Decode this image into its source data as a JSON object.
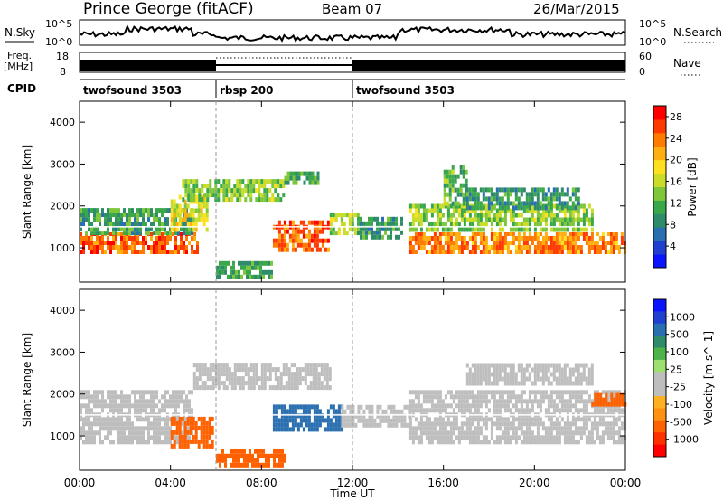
{
  "header": {
    "station": "Prince George (fitACF)",
    "beam": "Beam 07",
    "date": "26/Mar/2015"
  },
  "top_panels": {
    "nsky_label": "N.Sky",
    "nsky_ticks": [
      "10^5",
      "10^0"
    ],
    "nsearch_label": "N.Search",
    "nsearch_ticks": [
      "10^5",
      "10^0"
    ],
    "freq_label_line1": "Freq.",
    "freq_label_line2": "[MHz]",
    "freq_ticks": [
      "18",
      "8"
    ],
    "nave_label": "Nave",
    "nave_ticks": [
      "60",
      "0"
    ],
    "cpid_label": "CPID",
    "cpid_segments": [
      {
        "label": "twofsound 3503",
        "start_hour": 0,
        "end_hour": 6
      },
      {
        "label": "rbsp 200",
        "start_hour": 6,
        "end_hour": 12
      },
      {
        "label": "twofsound 3503",
        "start_hour": 12,
        "end_hour": 24
      }
    ]
  },
  "x_axis": {
    "label": "Time UT",
    "ticks": [
      "00:00",
      "04:00",
      "08:00",
      "12:00",
      "16:00",
      "20:00",
      "00:00"
    ]
  },
  "chart_data": [
    {
      "type": "heatmap",
      "title": "",
      "ylabel": "Slant Range [km]",
      "xlabel": "Time UT",
      "xlim": [
        0,
        24
      ],
      "ylim": [
        180,
        4500
      ],
      "y_ticks": [
        1000,
        2000,
        3000,
        4000
      ],
      "colorbar": {
        "label": "Power [dB]",
        "range": [
          0,
          30
        ],
        "ticks": [
          "4",
          "8",
          "12",
          "16",
          "20",
          "24",
          "28"
        ],
        "colors": [
          "#0a14ff",
          "#1e3fd0",
          "#2a6fb0",
          "#2e8c6a",
          "#3aa84a",
          "#7ec63a",
          "#c8dc28",
          "#ffe020",
          "#ffb010",
          "#ff7a00",
          "#ff3a00",
          "#ff0000"
        ]
      },
      "regions": [
        {
          "hour_start": 0.0,
          "hour_end": 5.2,
          "range_low": 850,
          "range_high": 1300,
          "value": 26
        },
        {
          "hour_start": 0.0,
          "hour_end": 5.0,
          "range_low": 1300,
          "range_high": 1850,
          "value": 10
        },
        {
          "hour_start": 4.0,
          "hour_end": 5.6,
          "range_low": 1400,
          "range_high": 2200,
          "value": 18
        },
        {
          "hour_start": 4.5,
          "hour_end": 9.0,
          "range_low": 2100,
          "range_high": 2600,
          "value": 14
        },
        {
          "hour_start": 9.0,
          "hour_end": 10.5,
          "range_low": 2500,
          "range_high": 2800,
          "value": 11
        },
        {
          "hour_start": 8.5,
          "hour_end": 11.0,
          "range_low": 900,
          "range_high": 1600,
          "value": 26
        },
        {
          "hour_start": 11.0,
          "hour_end": 12.2,
          "range_low": 1300,
          "range_high": 1800,
          "value": 15
        },
        {
          "hour_start": 12.2,
          "hour_end": 14.2,
          "range_low": 1200,
          "range_high": 1700,
          "value": 9
        },
        {
          "hour_start": 14.5,
          "hour_end": 24.0,
          "range_low": 850,
          "range_high": 1300,
          "value": 24
        },
        {
          "hour_start": 14.5,
          "hour_end": 22.5,
          "range_low": 1400,
          "range_high": 2000,
          "value": 14
        },
        {
          "hour_start": 16.0,
          "hour_end": 17.0,
          "range_low": 2000,
          "range_high": 2900,
          "value": 12
        },
        {
          "hour_start": 17.0,
          "hour_end": 22.0,
          "range_low": 1900,
          "range_high": 2400,
          "value": 9
        },
        {
          "hour_start": 6.0,
          "hour_end": 8.5,
          "range_low": 250,
          "range_high": 600,
          "value": 11
        }
      ]
    },
    {
      "type": "heatmap",
      "title": "",
      "ylabel": "Slant Range [km]",
      "xlabel": "Time UT",
      "xlim": [
        0,
        24
      ],
      "ylim": [
        180,
        4500
      ],
      "y_ticks": [
        1000,
        2000,
        3000,
        4000
      ],
      "colorbar": {
        "label": "Velocity [m s^-1]",
        "ticks": [
          "1000",
          "500",
          "100",
          "25",
          "-25",
          "-100",
          "-500",
          "-1000"
        ],
        "colors": [
          "#0a14ff",
          "#2040d0",
          "#2a6fb0",
          "#2e8c6a",
          "#4db24a",
          "#9de070",
          "#bebebe",
          "#bebebe",
          "#ffb020",
          "#ff9010",
          "#ff6000",
          "#ff3000",
          "#ff0000"
        ]
      },
      "regions": [
        {
          "hour_start": 0.0,
          "hour_end": 5.0,
          "range_low": 800,
          "range_high": 2000,
          "value": "ground"
        },
        {
          "hour_start": 4.0,
          "hour_end": 5.8,
          "range_low": 700,
          "range_high": 1400,
          "value": -300
        },
        {
          "hour_start": 5.0,
          "hour_end": 11.0,
          "range_low": 2100,
          "range_high": 2700,
          "value": "ground"
        },
        {
          "hour_start": 8.5,
          "hour_end": 11.5,
          "range_low": 1100,
          "range_high": 1700,
          "value": 250
        },
        {
          "hour_start": 11.5,
          "hour_end": 14.5,
          "range_low": 1200,
          "range_high": 1700,
          "value": "ground"
        },
        {
          "hour_start": 14.5,
          "hour_end": 24.0,
          "range_low": 800,
          "range_high": 2000,
          "value": "ground"
        },
        {
          "hour_start": 17.0,
          "hour_end": 22.5,
          "range_low": 2200,
          "range_high": 2700,
          "value": "ground"
        },
        {
          "hour_start": 22.5,
          "hour_end": 24.0,
          "range_low": 1700,
          "range_high": 1950,
          "value": -150
        },
        {
          "hour_start": 6.0,
          "hour_end": 9.0,
          "range_low": 250,
          "range_high": 600,
          "value": -400
        }
      ]
    }
  ]
}
